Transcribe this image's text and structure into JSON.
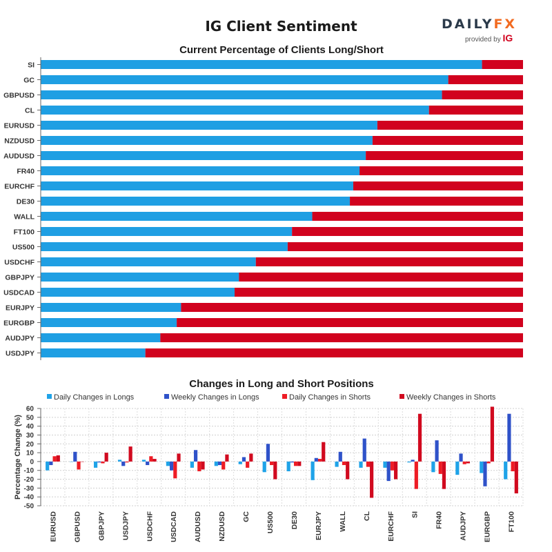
{
  "header": {
    "title": "IG Client Sentiment",
    "logo_text": "DAILYFX",
    "logo_provided": "provided by",
    "logo_ig": "IG"
  },
  "colors": {
    "long": "#1f9fe3",
    "short": "#d1021e",
    "daily_longs": "#1fa3e8",
    "weekly_longs": "#2f52c9",
    "daily_shorts": "#ee1c25",
    "weekly_shorts": "#d10a1f"
  },
  "chart_data": [
    {
      "type": "bar",
      "orientation": "horizontal-stacked",
      "title": "Current Percentage of Clients Long/Short",
      "categories": [
        "SI",
        "GC",
        "GBPUSD",
        "CL",
        "EURUSD",
        "NZDUSD",
        "AUDUSD",
        "FR40",
        "EURCHF",
        "DE30",
        "WALL",
        "FT100",
        "US500",
        "USDCHF",
        "GBPJPY",
        "USDCAD",
        "EURJPY",
        "EURGBP",
        "AUDJPY",
        "USDJPY"
      ],
      "series": [
        {
          "name": "Long",
          "values": [
            91.5,
            84.5,
            83.2,
            80.5,
            69.8,
            68.8,
            67.4,
            66.1,
            64.8,
            64.1,
            56.3,
            52.1,
            51.2,
            44.6,
            41.1,
            40.2,
            29.1,
            28.2,
            24.8,
            21.7
          ]
        },
        {
          "name": "Short",
          "values": [
            8.5,
            15.5,
            16.8,
            19.5,
            30.2,
            31.2,
            32.6,
            33.9,
            35.2,
            35.9,
            43.7,
            47.9,
            48.8,
            55.4,
            58.9,
            59.8,
            70.9,
            71.8,
            75.2,
            78.3
          ]
        }
      ],
      "xlim": [
        0,
        100
      ]
    },
    {
      "type": "bar",
      "title": "Changes in Long and Short Positions",
      "ylabel": "Percentage Change (%)",
      "ylim": [
        -50,
        60
      ],
      "yticks": [
        60,
        50,
        40,
        30,
        20,
        10,
        0,
        -10,
        -20,
        -30,
        -40,
        -50
      ],
      "categories": [
        "EURUSD",
        "GBPUSD",
        "GBPJPY",
        "USDJPY",
        "USDCHF",
        "USDCAD",
        "AUDUSD",
        "NZDUSD",
        "GC",
        "US500",
        "DE30",
        "EURJPY",
        "WALL",
        "CL",
        "EURCHF",
        "SI",
        "FR40",
        "AUDJPY",
        "EURGBP",
        "FT100"
      ],
      "series": [
        {
          "name": "Daily Changes in Longs",
          "values": [
            -10,
            0,
            -7,
            2,
            2,
            -5,
            -7,
            -5,
            -3,
            -12,
            -11,
            -21,
            -6,
            -7,
            -7,
            -1,
            -12,
            -15,
            -13,
            -20
          ]
        },
        {
          "name": "Weekly Changes in Longs",
          "values": [
            -4,
            11,
            -1,
            -5,
            -4,
            -10,
            13,
            -4,
            5,
            20,
            -1,
            4,
            11,
            26,
            -22,
            2,
            24,
            9,
            -28,
            54
          ]
        },
        {
          "name": "Daily Changes in Shorts",
          "values": [
            6,
            -9,
            -2,
            -1,
            6,
            -19,
            -11,
            -9,
            -7,
            -4,
            -5,
            3,
            -4,
            -6,
            -10,
            -31,
            -14,
            -3,
            -2,
            -11
          ]
        },
        {
          "name": "Weekly Changes in Shorts",
          "values": [
            7,
            0,
            10,
            17,
            3,
            9,
            -9,
            8,
            9,
            -20,
            -5,
            22,
            -20,
            -41,
            -20,
            54,
            -31,
            -2,
            62,
            -36
          ]
        }
      ]
    }
  ]
}
